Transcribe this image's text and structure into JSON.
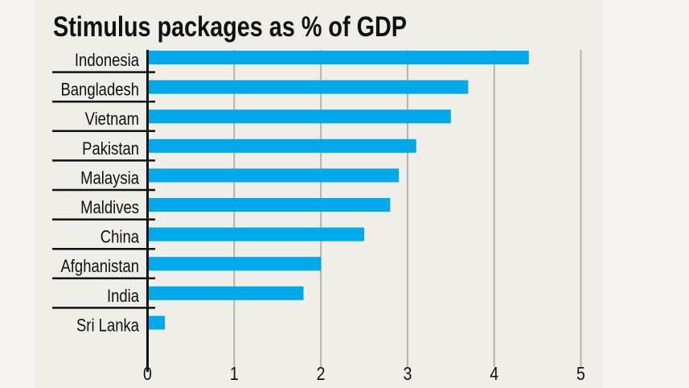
{
  "chart_data": {
    "type": "bar",
    "orientation": "horizontal",
    "title": "Stimulus packages as % of GDP",
    "categories": [
      "Indonesia",
      "Bangladesh",
      "Vietnam",
      "Pakistan",
      "Malaysia",
      "Maldives",
      "China",
      "Afghanistan",
      "India",
      "Sri Lanka"
    ],
    "values": [
      4.4,
      3.7,
      3.5,
      3.1,
      2.9,
      2.8,
      2.5,
      2.0,
      1.8,
      0.2
    ],
    "xlabel": "",
    "ylabel": "",
    "xlim": [
      0,
      5
    ],
    "xticks": [
      "0",
      "1",
      "2",
      "3",
      "4",
      "5"
    ],
    "grid": true,
    "legend": "none",
    "colors": {
      "bar": "#00a8ec",
      "grid": "#b5b2ab",
      "axis": "#111111",
      "background": "#f0eee8"
    }
  }
}
